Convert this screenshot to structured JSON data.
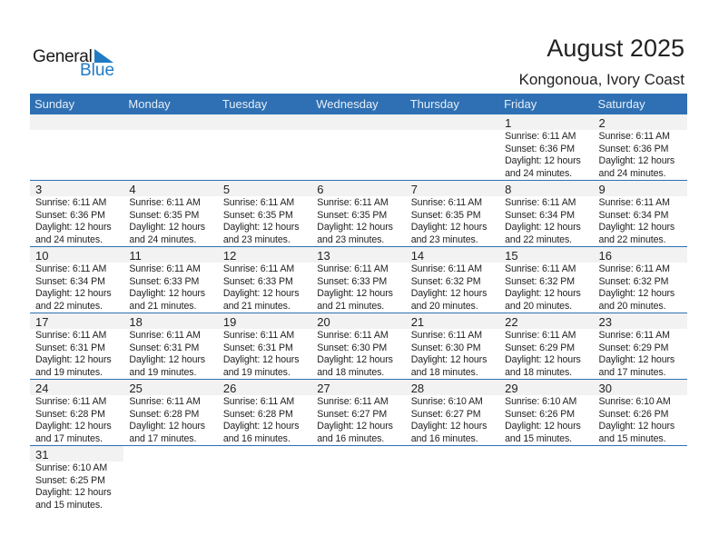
{
  "logo": {
    "text_top": "General",
    "text_bottom": "Blue"
  },
  "header": {
    "title": "August 2025",
    "location": "Kongonoua, Ivory Coast"
  },
  "colors": {
    "header_bg": "#2e70b3",
    "day_band": "#f2f2f2",
    "logo_blue": "#1f7bc4"
  },
  "weekdays": [
    "Sunday",
    "Monday",
    "Tuesday",
    "Wednesday",
    "Thursday",
    "Friday",
    "Saturday"
  ],
  "weeks": [
    [
      null,
      null,
      null,
      null,
      null,
      {
        "day": "1",
        "sunrise": "Sunrise: 6:11 AM",
        "sunset": "Sunset: 6:36 PM",
        "daylight": "Daylight: 12 hours",
        "minutes": "and 24 minutes."
      },
      {
        "day": "2",
        "sunrise": "Sunrise: 6:11 AM",
        "sunset": "Sunset: 6:36 PM",
        "daylight": "Daylight: 12 hours",
        "minutes": "and 24 minutes."
      }
    ],
    [
      {
        "day": "3",
        "sunrise": "Sunrise: 6:11 AM",
        "sunset": "Sunset: 6:36 PM",
        "daylight": "Daylight: 12 hours",
        "minutes": "and 24 minutes."
      },
      {
        "day": "4",
        "sunrise": "Sunrise: 6:11 AM",
        "sunset": "Sunset: 6:35 PM",
        "daylight": "Daylight: 12 hours",
        "minutes": "and 24 minutes."
      },
      {
        "day": "5",
        "sunrise": "Sunrise: 6:11 AM",
        "sunset": "Sunset: 6:35 PM",
        "daylight": "Daylight: 12 hours",
        "minutes": "and 23 minutes."
      },
      {
        "day": "6",
        "sunrise": "Sunrise: 6:11 AM",
        "sunset": "Sunset: 6:35 PM",
        "daylight": "Daylight: 12 hours",
        "minutes": "and 23 minutes."
      },
      {
        "day": "7",
        "sunrise": "Sunrise: 6:11 AM",
        "sunset": "Sunset: 6:35 PM",
        "daylight": "Daylight: 12 hours",
        "minutes": "and 23 minutes."
      },
      {
        "day": "8",
        "sunrise": "Sunrise: 6:11 AM",
        "sunset": "Sunset: 6:34 PM",
        "daylight": "Daylight: 12 hours",
        "minutes": "and 22 minutes."
      },
      {
        "day": "9",
        "sunrise": "Sunrise: 6:11 AM",
        "sunset": "Sunset: 6:34 PM",
        "daylight": "Daylight: 12 hours",
        "minutes": "and 22 minutes."
      }
    ],
    [
      {
        "day": "10",
        "sunrise": "Sunrise: 6:11 AM",
        "sunset": "Sunset: 6:34 PM",
        "daylight": "Daylight: 12 hours",
        "minutes": "and 22 minutes."
      },
      {
        "day": "11",
        "sunrise": "Sunrise: 6:11 AM",
        "sunset": "Sunset: 6:33 PM",
        "daylight": "Daylight: 12 hours",
        "minutes": "and 21 minutes."
      },
      {
        "day": "12",
        "sunrise": "Sunrise: 6:11 AM",
        "sunset": "Sunset: 6:33 PM",
        "daylight": "Daylight: 12 hours",
        "minutes": "and 21 minutes."
      },
      {
        "day": "13",
        "sunrise": "Sunrise: 6:11 AM",
        "sunset": "Sunset: 6:33 PM",
        "daylight": "Daylight: 12 hours",
        "minutes": "and 21 minutes."
      },
      {
        "day": "14",
        "sunrise": "Sunrise: 6:11 AM",
        "sunset": "Sunset: 6:32 PM",
        "daylight": "Daylight: 12 hours",
        "minutes": "and 20 minutes."
      },
      {
        "day": "15",
        "sunrise": "Sunrise: 6:11 AM",
        "sunset": "Sunset: 6:32 PM",
        "daylight": "Daylight: 12 hours",
        "minutes": "and 20 minutes."
      },
      {
        "day": "16",
        "sunrise": "Sunrise: 6:11 AM",
        "sunset": "Sunset: 6:32 PM",
        "daylight": "Daylight: 12 hours",
        "minutes": "and 20 minutes."
      }
    ],
    [
      {
        "day": "17",
        "sunrise": "Sunrise: 6:11 AM",
        "sunset": "Sunset: 6:31 PM",
        "daylight": "Daylight: 12 hours",
        "minutes": "and 19 minutes."
      },
      {
        "day": "18",
        "sunrise": "Sunrise: 6:11 AM",
        "sunset": "Sunset: 6:31 PM",
        "daylight": "Daylight: 12 hours",
        "minutes": "and 19 minutes."
      },
      {
        "day": "19",
        "sunrise": "Sunrise: 6:11 AM",
        "sunset": "Sunset: 6:31 PM",
        "daylight": "Daylight: 12 hours",
        "minutes": "and 19 minutes."
      },
      {
        "day": "20",
        "sunrise": "Sunrise: 6:11 AM",
        "sunset": "Sunset: 6:30 PM",
        "daylight": "Daylight: 12 hours",
        "minutes": "and 18 minutes."
      },
      {
        "day": "21",
        "sunrise": "Sunrise: 6:11 AM",
        "sunset": "Sunset: 6:30 PM",
        "daylight": "Daylight: 12 hours",
        "minutes": "and 18 minutes."
      },
      {
        "day": "22",
        "sunrise": "Sunrise: 6:11 AM",
        "sunset": "Sunset: 6:29 PM",
        "daylight": "Daylight: 12 hours",
        "minutes": "and 18 minutes."
      },
      {
        "day": "23",
        "sunrise": "Sunrise: 6:11 AM",
        "sunset": "Sunset: 6:29 PM",
        "daylight": "Daylight: 12 hours",
        "minutes": "and 17 minutes."
      }
    ],
    [
      {
        "day": "24",
        "sunrise": "Sunrise: 6:11 AM",
        "sunset": "Sunset: 6:28 PM",
        "daylight": "Daylight: 12 hours",
        "minutes": "and 17 minutes."
      },
      {
        "day": "25",
        "sunrise": "Sunrise: 6:11 AM",
        "sunset": "Sunset: 6:28 PM",
        "daylight": "Daylight: 12 hours",
        "minutes": "and 17 minutes."
      },
      {
        "day": "26",
        "sunrise": "Sunrise: 6:11 AM",
        "sunset": "Sunset: 6:28 PM",
        "daylight": "Daylight: 12 hours",
        "minutes": "and 16 minutes."
      },
      {
        "day": "27",
        "sunrise": "Sunrise: 6:11 AM",
        "sunset": "Sunset: 6:27 PM",
        "daylight": "Daylight: 12 hours",
        "minutes": "and 16 minutes."
      },
      {
        "day": "28",
        "sunrise": "Sunrise: 6:10 AM",
        "sunset": "Sunset: 6:27 PM",
        "daylight": "Daylight: 12 hours",
        "minutes": "and 16 minutes."
      },
      {
        "day": "29",
        "sunrise": "Sunrise: 6:10 AM",
        "sunset": "Sunset: 6:26 PM",
        "daylight": "Daylight: 12 hours",
        "minutes": "and 15 minutes."
      },
      {
        "day": "30",
        "sunrise": "Sunrise: 6:10 AM",
        "sunset": "Sunset: 6:26 PM",
        "daylight": "Daylight: 12 hours",
        "minutes": "and 15 minutes."
      }
    ],
    [
      {
        "day": "31",
        "sunrise": "Sunrise: 6:10 AM",
        "sunset": "Sunset: 6:25 PM",
        "daylight": "Daylight: 12 hours",
        "minutes": "and 15 minutes."
      },
      null,
      null,
      null,
      null,
      null,
      null
    ]
  ]
}
